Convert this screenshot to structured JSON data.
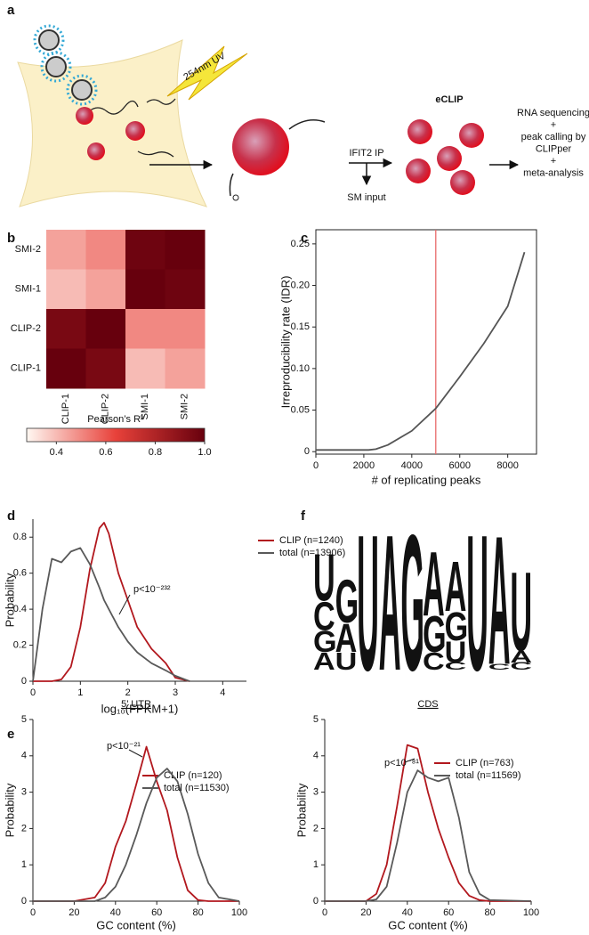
{
  "diagram": {
    "panel": "a",
    "uv": "254nm UV",
    "method": "eCLIP",
    "ip": "IFIT2 IP",
    "input": "SM input",
    "output": [
      "RNA sequencing",
      "+",
      "peak calling by",
      "CLIPper",
      "+",
      "meta-analysis"
    ]
  },
  "chart_data": [
    {
      "type": "heatmap",
      "panel": "b",
      "x_categories": [
        "CLIP-1",
        "CLIP-2",
        "SMI-1",
        "SMI-2"
      ],
      "y_categories": [
        "SMI-2",
        "SMI-1",
        "CLIP-2",
        "CLIP-1"
      ],
      "values": [
        [
          0.45,
          0.5,
          0.98,
          1.0
        ],
        [
          0.4,
          0.45,
          1.0,
          0.98
        ],
        [
          0.95,
          1.0,
          0.5,
          0.5
        ],
        [
          1.0,
          0.95,
          0.4,
          0.45
        ]
      ],
      "colorbar": {
        "title": "Pearson’s R²",
        "lim": [
          0.28,
          1.0
        ],
        "ticks": [
          0.4,
          0.6,
          0.8,
          {
            "value": 1.0,
            "label": "1.0"
          }
        ],
        "colormap": [
          "#fff8f2",
          "#e8413a",
          "#67000d"
        ]
      }
    },
    {
      "type": "line",
      "panel": "c",
      "xlabel": "# of replicating peaks",
      "ylabel": "Irreproducibility rate (IDR)",
      "x": [
        0,
        2200,
        2500,
        3000,
        4000,
        5000,
        6000,
        7000,
        8000,
        8700
      ],
      "values": [
        0.002,
        0.002,
        0.003,
        0.008,
        0.025,
        0.052,
        0.09,
        0.13,
        0.175,
        0.24
      ],
      "color": "#555555",
      "vline": {
        "x": 5000,
        "color": "#e86a6a"
      },
      "xlim": [
        0,
        9200
      ],
      "ylim": [
        -0.003,
        0.267
      ],
      "xticks": [
        0,
        2000,
        4000,
        6000,
        8000
      ],
      "yticks": [
        0,
        0.05,
        {
          "value": 0.1,
          "label": "0.10"
        },
        0.15,
        {
          "value": 0.2,
          "label": "0.20"
        },
        0.25
      ]
    },
    {
      "type": "line",
      "panel": "d",
      "xlabel": "log₁₀(FPKM+1)",
      "ylabel": "Probability",
      "annotation": "p<10⁻²³²",
      "x": [
        0,
        0.2,
        0.4,
        0.6,
        0.8,
        1.0,
        1.2,
        1.4,
        1.5,
        1.6,
        1.8,
        2.0,
        2.2,
        2.5,
        2.8,
        3.0,
        3.3
      ],
      "series": [
        {
          "name": "CLIP (n=1240)",
          "color": "#b2181e",
          "values": [
            0,
            0,
            0,
            0.01,
            0.08,
            0.3,
            0.62,
            0.85,
            0.88,
            0.82,
            0.6,
            0.45,
            0.3,
            0.18,
            0.1,
            0.02,
            0
          ]
        },
        {
          "name": "total (n=13906)",
          "color": "#595959",
          "values": [
            0,
            0.4,
            0.68,
            0.66,
            0.72,
            0.74,
            0.65,
            0.52,
            0.45,
            0.4,
            0.3,
            0.22,
            0.16,
            0.1,
            0.06,
            0.03,
            0
          ]
        }
      ],
      "xlim": [
        0,
        4.5
      ],
      "ylim": [
        0,
        0.9
      ],
      "xticks": [
        0,
        1,
        2,
        3,
        4
      ],
      "yticks": [
        0,
        0.2,
        0.4,
        0.6,
        0.8
      ]
    },
    {
      "type": "line",
      "panel": "e",
      "title": "5’ UTR",
      "xlabel": "GC content (%)",
      "ylabel": "Probability",
      "annotation": "p<10⁻²¹",
      "x": [
        0,
        20,
        30,
        35,
        40,
        45,
        50,
        55,
        60,
        65,
        70,
        75,
        80,
        85,
        90,
        100
      ],
      "series": [
        {
          "name": "CLIP (n=120)",
          "color": "#b2181e",
          "values": [
            0,
            0,
            0.1,
            0.5,
            1.5,
            2.2,
            3.2,
            4.25,
            3.3,
            2.5,
            1.2,
            0.3,
            0.03,
            0,
            0,
            0
          ]
        },
        {
          "name": "total (n=11530)",
          "color": "#595959",
          "values": [
            0,
            0,
            0,
            0.1,
            0.4,
            1.0,
            1.8,
            2.7,
            3.4,
            3.65,
            3.3,
            2.4,
            1.3,
            0.5,
            0.1,
            0
          ]
        }
      ],
      "xlim": [
        0,
        100
      ],
      "ylim": [
        0,
        5
      ],
      "xticks": [
        0,
        20,
        40,
        60,
        80,
        100
      ],
      "yticks": [
        0,
        1,
        2,
        3,
        4,
        5
      ]
    },
    {
      "type": "line",
      "title": "CDS",
      "xlabel": "GC content (%)",
      "ylabel": "Probability",
      "annotation": "p<10⁻⁸¹",
      "x": [
        0,
        20,
        25,
        30,
        35,
        40,
        45,
        50,
        55,
        60,
        65,
        70,
        75,
        80,
        100
      ],
      "series": [
        {
          "name": "CLIP (n=763)",
          "color": "#b2181e",
          "values": [
            0,
            0,
            0.2,
            1.0,
            2.6,
            4.3,
            4.2,
            3.0,
            2.0,
            1.2,
            0.5,
            0.15,
            0.03,
            0,
            0
          ]
        },
        {
          "name": "total (n=11569)",
          "color": "#595959",
          "values": [
            0,
            0,
            0.05,
            0.4,
            1.6,
            3.0,
            3.6,
            3.4,
            3.3,
            3.4,
            2.3,
            0.8,
            0.2,
            0.03,
            0
          ]
        }
      ],
      "xlim": [
        0,
        100
      ],
      "ylim": [
        0,
        5
      ],
      "xticks": [
        0,
        20,
        40,
        60,
        80,
        100
      ],
      "yticks": [
        0,
        1,
        2,
        3,
        4,
        5
      ]
    },
    {
      "type": "logo",
      "panel": "f",
      "colors": {
        "A": "#1f9e45",
        "C": "#2b3f9e",
        "G": "#f0a020",
        "U": "#d0202c"
      },
      "columns": [
        [
          {
            "letter": "U",
            "height": 0.33
          },
          {
            "letter": "C",
            "height": 0.2
          },
          {
            "letter": "G",
            "height": 0.15
          },
          {
            "letter": "A",
            "height": 0.12
          }
        ],
        [
          {
            "letter": "G",
            "height": 0.3
          },
          {
            "letter": "A",
            "height": 0.2
          },
          {
            "letter": "U",
            "height": 0.12
          }
        ],
        [
          {
            "letter": "U",
            "height": 0.95
          }
        ],
        [
          {
            "letter": "A",
            "height": 0.95
          }
        ],
        [
          {
            "letter": "G",
            "height": 0.95
          }
        ],
        [
          {
            "letter": "A",
            "height": 0.45
          },
          {
            "letter": "G",
            "height": 0.25
          },
          {
            "letter": "C",
            "height": 0.12
          }
        ],
        [
          {
            "letter": "A",
            "height": 0.35
          },
          {
            "letter": "G",
            "height": 0.2
          },
          {
            "letter": "U",
            "height": 0.15
          },
          {
            "letter": "C",
            "height": 0.05
          }
        ],
        [
          {
            "letter": "U",
            "height": 0.95
          }
        ],
        [
          {
            "letter": "A",
            "height": 0.9
          },
          {
            "letter": "C",
            "height": 0.04
          }
        ],
        [
          {
            "letter": "U",
            "height": 0.55
          },
          {
            "letter": "A",
            "height": 0.08
          },
          {
            "letter": "C",
            "height": 0.05
          }
        ]
      ]
    }
  ]
}
